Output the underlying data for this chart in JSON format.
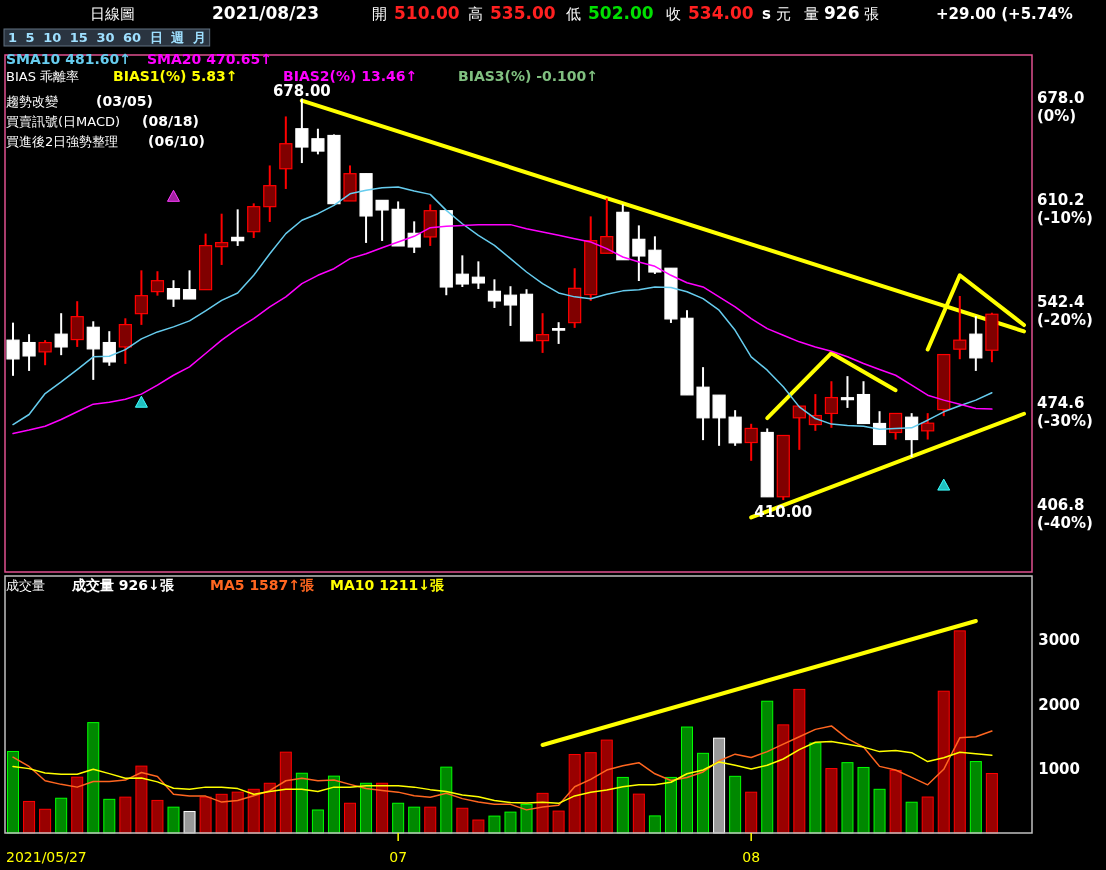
{
  "chart_data": [
    {
      "type": "candlestick",
      "legend": "top left",
      "grid": false,
      "tick_labels": "y",
      "categories": [
        null,
        null,
        null,
        null,
        null,
        null,
        null,
        null,
        null,
        null,
        null,
        null,
        null,
        null,
        null,
        null,
        null,
        null,
        null,
        null,
        null,
        null,
        null,
        null,
        null,
        null,
        null,
        null,
        null,
        null,
        null,
        null,
        null,
        null,
        null,
        null,
        null,
        null,
        null,
        null,
        null,
        null,
        null,
        null,
        null,
        null,
        null,
        null,
        null,
        null,
        null,
        null,
        null,
        null,
        null,
        null,
        null,
        null,
        null,
        null,
        null,
        null,
        null,
        null
      ],
      "ylim": [
        362,
        707
      ],
      "yticks": [
        {
          "value": 678.0,
          "label": "678.0"
        },
        {
          "value": 610.2,
          "label": "610.2"
        },
        {
          "value": 542.4,
          "label": "542.4"
        },
        {
          "value": 474.6,
          "label": "474.6"
        },
        {
          "value": 406.8,
          "label": "406.8"
        }
      ],
      "y2lim": [
        -44.84,
        6.05
      ],
      "y2ticks": [
        {
          "value": 0,
          "label": "(0%)"
        },
        {
          "value": -10,
          "label": "(-10%)"
        },
        {
          "value": -20,
          "label": "(-20%)"
        },
        {
          "value": -30,
          "label": "(-30%)"
        },
        {
          "value": -40,
          "label": "(-40%)"
        }
      ],
      "ohlc": [
        [
          516.7,
          528.4,
          492.9,
          504.2
        ],
        [
          515.1,
          520.7,
          496.2,
          506.2
        ],
        [
          508.9,
          516.7,
          500.0,
          515.1
        ],
        [
          520.7,
          534.7,
          506.7,
          512.2
        ],
        [
          517.1,
          542.7,
          512.2,
          532.4
        ],
        [
          525.3,
          529.3,
          490.2,
          510.9
        ],
        [
          515.1,
          522.7,
          499.6,
          502.2
        ],
        [
          512.2,
          531.3,
          500.9,
          527.1
        ],
        [
          534.4,
          563.3,
          526.9,
          546.4
        ],
        [
          549.1,
          562.7,
          546.4,
          556.4
        ],
        [
          551.1,
          556.7,
          538.9,
          544.2
        ],
        [
          550.4,
          563.3,
          544.2,
          544.2
        ],
        [
          550.4,
          587.8,
          550.4,
          579.8
        ],
        [
          579.1,
          601.1,
          566.9,
          581.8
        ],
        [
          585.3,
          604.0,
          579.6,
          583.1
        ],
        [
          589.1,
          608.0,
          584.9,
          605.8
        ],
        [
          605.8,
          633.3,
          595.6,
          619.8
        ],
        [
          631.1,
          666.0,
          617.6,
          647.8
        ],
        [
          657.8,
          678.0,
          634.9,
          645.6
        ],
        [
          651.1,
          657.8,
          640.7,
          642.9
        ],
        [
          653.3,
          654.0,
          607.8,
          607.8
        ],
        [
          609.6,
          633.3,
          609.6,
          627.8
        ],
        [
          627.8,
          627.8,
          581.6,
          599.6
        ],
        [
          610.0,
          610.0,
          582.9,
          603.6
        ],
        [
          604.0,
          609.3,
          579.6,
          579.6
        ],
        [
          588.0,
          596.0,
          574.9,
          578.9
        ],
        [
          585.6,
          607.3,
          579.6,
          603.1
        ],
        [
          603.1,
          603.1,
          546.7,
          552.2
        ],
        [
          560.7,
          573.3,
          552.2,
          554.2
        ],
        [
          558.7,
          569.3,
          550.9,
          554.9
        ],
        [
          549.3,
          557.3,
          538.2,
          542.9
        ],
        [
          546.7,
          552.7,
          526.2,
          540.2
        ],
        [
          547.3,
          550.7,
          516.2,
          516.2
        ],
        [
          516.4,
          534.7,
          508.2,
          520.4
        ],
        [
          524.4,
          528.7,
          514.2,
          524.4
        ],
        [
          528.4,
          564.7,
          524.9,
          551.3
        ],
        [
          547.1,
          599.3,
          542.9,
          583.1
        ],
        [
          574.7,
          611.3,
          574.7,
          585.8
        ],
        [
          602.0,
          607.3,
          570.4,
          570.4
        ],
        [
          584.0,
          593.3,
          556.2,
          572.9
        ],
        [
          576.7,
          586.0,
          560.9,
          562.2
        ],
        [
          564.7,
          564.7,
          528.2,
          530.9
        ],
        [
          531.3,
          536.7,
          480.2,
          480.2
        ],
        [
          485.3,
          498.7,
          450.0,
          464.9
        ],
        [
          480.0,
          480.0,
          446.2,
          464.9
        ],
        [
          465.3,
          470.0,
          446.2,
          448.2
        ],
        [
          448.4,
          460.9,
          436.2,
          457.8
        ],
        [
          455.1,
          457.8,
          412.2,
          412.2
        ],
        [
          412.2,
          453.1,
          410.0,
          453.1
        ],
        [
          464.9,
          472.7,
          443.5,
          472.7
        ],
        [
          460.4,
          480.7,
          456.2,
          466.4
        ],
        [
          467.8,
          489.3,
          458.2,
          478.4
        ],
        [
          478.3,
          492.7,
          471.5,
          477.0
        ],
        [
          480.4,
          489.3,
          461.1,
          461.1
        ],
        [
          461.1,
          469.3,
          447.1,
          447.1
        ],
        [
          455.1,
          467.8,
          450.4,
          467.8
        ],
        [
          465.3,
          468.0,
          438.7,
          450.4
        ],
        [
          456.2,
          468.0,
          450.4,
          461.3
        ],
        [
          470.4,
          507.1,
          466.0,
          507.1
        ],
        [
          510.7,
          546.2,
          504.0,
          516.7
        ],
        [
          520.7,
          532.7,
          496.2,
          504.9
        ],
        [
          510,
          535,
          502,
          534
        ],
        null,
        null
      ],
      "colors": [
        "#ffffff",
        "#ffffff",
        "#800000",
        "#ffffff",
        "#800000",
        "#ffffff",
        "#ffffff",
        "#800000",
        "#800000",
        "#800000",
        "#ffffff",
        "#ffffff",
        "#800000",
        "#800000",
        "#ffffff",
        "#800000",
        "#800000",
        "#800000",
        "#ffffff",
        "#ffffff",
        "#ffffff",
        "#800000",
        "#ffffff",
        "#ffffff",
        "#ffffff",
        "#ffffff",
        "#800000",
        "#ffffff",
        "#ffffff",
        "#ffffff",
        "#ffffff",
        "#ffffff",
        "#ffffff",
        "#800000",
        "#ffffff",
        "#800000",
        "#800000",
        "#800000",
        "#ffffff",
        "#ffffff",
        "#ffffff",
        "#ffffff",
        "#ffffff",
        "#ffffff",
        "#ffffff",
        "#ffffff",
        "#800000",
        "#ffffff",
        "#800000",
        "#800000",
        "#800000",
        "#800000",
        "#ffffff",
        "#ffffff",
        "#ffffff",
        "#800000",
        "#ffffff",
        "#800000",
        "#800000",
        "#800000",
        "#ffffff",
        "#800000",
        null,
        null
      ],
      "series": [
        {
          "type": "line",
          "name": "SMA10 481.60↑",
          "color": "#66ccee",
          "values": [
            460.4,
            467.1,
            481.1,
            488.9,
            497.1,
            505.6,
            506,
            510.4,
            517.6,
            522.2,
            525.6,
            529.6,
            536.2,
            543.3,
            548.2,
            560,
            574.4,
            587.8,
            596.7,
            601.1,
            606.7,
            614.4,
            616.7,
            618.4,
            618.9,
            616.2,
            614,
            603.3,
            594.4,
            586.7,
            580,
            571.1,
            562.2,
            554.4,
            548.2,
            545.6,
            544.4,
            547.3,
            549.6,
            550.4,
            552.2,
            551.8,
            549,
            544.4,
            536.7,
            523.3,
            505.6,
            496.7,
            485.6,
            472.2,
            464.4,
            460.7,
            459.8,
            459.3,
            457.3,
            457.8,
            458.2,
            463.3,
            468.9,
            472.9,
            476.7,
            481.6,
            null,
            null
          ]
        },
        {
          "type": "line",
          "name": "SMA20 470.65↑",
          "color": "#ff00ff",
          "values": [
            454.4,
            456.7,
            459.3,
            463.8,
            468.9,
            474,
            475.3,
            477.3,
            480.7,
            486.7,
            493.3,
            498.9,
            507.8,
            516.7,
            524.4,
            531.1,
            538.9,
            545.6,
            554.4,
            560,
            564.4,
            571.1,
            574.4,
            578.4,
            582.2,
            586,
            591.8,
            592.7,
            593.3,
            593.8,
            593.8,
            593.8,
            591.1,
            588.9,
            586.7,
            584.4,
            582.2,
            577.8,
            572.2,
            568.9,
            566,
            560,
            555,
            552.2,
            545.6,
            538.9,
            531.1,
            524.4,
            520,
            515.6,
            512.2,
            509.3,
            505.6,
            501.1,
            497.1,
            493.3,
            486.7,
            480,
            476.7,
            474,
            471.1,
            470.7,
            null,
            null
          ]
        },
        {
          "type": "line",
          "color": "#ffff00",
          "values": [
            null,
            null,
            null,
            null,
            null,
            null,
            null,
            null,
            null,
            null,
            null,
            null,
            null,
            null,
            null,
            null,
            null,
            null,
            676.5,
            null,
            null,
            null,
            null,
            null,
            null,
            null,
            null,
            null,
            null,
            null,
            null,
            null,
            null,
            null,
            null,
            null,
            null,
            null,
            null,
            null,
            null,
            null,
            null,
            null,
            null,
            null,
            null,
            null,
            null,
            null,
            null,
            null,
            null,
            null,
            null,
            null,
            null,
            null,
            null,
            null,
            null,
            null,
            null,
            522.6
          ]
        },
        {
          "type": "line",
          "color": "#ffff00",
          "values": [
            null,
            null,
            null,
            null,
            null,
            null,
            null,
            null,
            null,
            null,
            null,
            null,
            null,
            null,
            null,
            null,
            null,
            null,
            null,
            null,
            null,
            null,
            null,
            null,
            null,
            null,
            null,
            null,
            null,
            null,
            null,
            null,
            null,
            null,
            null,
            null,
            null,
            null,
            null,
            null,
            null,
            null,
            null,
            null,
            null,
            null,
            398.4,
            null,
            null,
            null,
            null,
            null,
            null,
            null,
            null,
            null,
            null,
            null,
            null,
            null,
            null,
            null,
            null,
            467.6
          ]
        },
        {
          "type": "line",
          "color": "#ffff00",
          "values": [
            null,
            null,
            null,
            null,
            null,
            null,
            null,
            null,
            null,
            null,
            null,
            null,
            null,
            null,
            null,
            null,
            null,
            null,
            null,
            null,
            null,
            null,
            null,
            null,
            null,
            null,
            null,
            null,
            null,
            null,
            null,
            null,
            null,
            null,
            null,
            null,
            null,
            null,
            null,
            null,
            null,
            null,
            null,
            null,
            null,
            null,
            null,
            464.7,
            null,
            null,
            null,
            508,
            null,
            null,
            null,
            483.3,
            null,
            null,
            null,
            null,
            null,
            null,
            null,
            null
          ]
        },
        {
          "type": "line",
          "color": "#ffff00",
          "values": [
            null,
            null,
            null,
            null,
            null,
            null,
            null,
            null,
            null,
            null,
            null,
            null,
            null,
            null,
            null,
            null,
            null,
            null,
            null,
            null,
            null,
            null,
            null,
            null,
            null,
            null,
            null,
            null,
            null,
            null,
            null,
            null,
            null,
            null,
            null,
            null,
            null,
            null,
            null,
            null,
            null,
            null,
            null,
            null,
            null,
            null,
            null,
            null,
            null,
            null,
            null,
            null,
            null,
            null,
            null,
            null,
            null,
            510.5,
            null,
            560,
            null,
            null,
            null,
            526.8
          ]
        },
        {
          "type": "scatter",
          "color": "#a020a0",
          "marker": "triangle",
          "values": [
            null,
            null,
            null,
            null,
            null,
            null,
            null,
            null,
            null,
            null,
            612.7,
            null,
            null,
            null,
            null,
            null,
            null,
            null,
            null,
            null,
            null,
            null,
            null,
            null,
            null,
            null,
            null,
            null,
            null,
            null,
            null,
            null,
            null,
            null,
            null,
            null,
            null,
            null,
            null,
            null,
            null,
            null,
            null,
            null,
            null,
            null,
            null,
            null,
            null,
            null,
            null,
            null,
            null,
            null,
            null,
            null,
            null,
            null,
            null,
            null,
            null,
            null,
            null,
            null
          ]
        },
        {
          "type": "scatter",
          "color": "#20c0c0",
          "marker": "triangle",
          "values": [
            null,
            null,
            null,
            null,
            null,
            null,
            null,
            null,
            475.3,
            null,
            null,
            null,
            null,
            null,
            null,
            null,
            null,
            null,
            null,
            null,
            null,
            null,
            null,
            null,
            null,
            null,
            null,
            null,
            null,
            null,
            null,
            null,
            null,
            null,
            null,
            null,
            null,
            null,
            null,
            null,
            null,
            null,
            null,
            null,
            null,
            null,
            null,
            null,
            null,
            null,
            null,
            null,
            null,
            null,
            null,
            null,
            null,
            null,
            420,
            null,
            null,
            null,
            null,
            null
          ]
        }
      ],
      "annotations": [
        "日線圖",
        "2021/08/23",
        "開",
        "510.00",
        "高",
        "535.00",
        "低",
        "502.00",
        "收",
        "534.00",
        "s",
        "元",
        "量",
        "926",
        "張",
        "+29.00 (+5.74%",
        "1 5 10 15 30 60 日 週 月",
        "BIAS 乖離率",
        "BIAS1(%) 5.83↑",
        "BIAS2(%) 13.46↑",
        "BIAS3(%) -0.100↑",
        "趨勢改變",
        "(03/05)",
        "買賣訊號(日MACD)",
        "(08/18)",
        "買進後2日強勢整理",
        "(06/10)",
        {
          "text": "678.00",
          "y": 678
        },
        {
          "text": "410.00",
          "y": 410
        }
      ]
    },
    {
      "type": "bar",
      "legend": "top left",
      "grid": false,
      "categories": [
        null,
        null,
        null,
        null,
        null,
        null,
        null,
        null,
        null,
        null,
        null,
        null,
        null,
        null,
        null,
        null,
        null,
        null,
        null,
        null,
        null,
        null,
        null,
        null,
        "07",
        null,
        null,
        null,
        null,
        null,
        null,
        null,
        null,
        null,
        null,
        null,
        null,
        null,
        null,
        null,
        null,
        null,
        null,
        null,
        null,
        null,
        "08",
        null,
        null,
        null,
        null,
        null,
        null,
        null,
        null,
        null,
        null,
        null,
        null,
        null,
        null,
        null,
        null,
        null
      ],
      "ylim": [
        0,
        4000
      ],
      "yticks": [
        1000,
        2000,
        3000
      ],
      "series": [
        {
          "type": "bar",
          "values": [
            1269,
            491,
            369,
            541,
            869,
            1718,
            524,
            558,
            1041,
            507,
            402,
            335,
            558,
            602,
            636,
            680,
            774,
            1258,
            930,
            358,
            885,
            463,
            774,
            774,
            463,
            402,
            402,
            1025,
            385,
            202,
            263,
            325,
            445,
            617,
            341,
            1222,
            1250,
            1446,
            865,
            605,
            266,
            865,
            1649,
            1240,
            1476,
            882,
            635,
            2051,
            1683,
            2235,
            1400,
            1003,
            1095,
            1020,
            680,
            974,
            479,
            560,
            2207,
            3146,
            1112,
            926,
            null,
            null
          ],
          "colors": [
            "#008800",
            "#990000",
            "#990000",
            "#008800",
            "#990000",
            "#008800",
            "#008800",
            "#990000",
            "#990000",
            "#990000",
            "#008800",
            "#999999",
            "#990000",
            "#990000",
            "#990000",
            "#990000",
            "#990000",
            "#990000",
            "#008800",
            "#008800",
            "#008800",
            "#990000",
            "#008800",
            "#990000",
            "#008800",
            "#008800",
            "#990000",
            "#008800",
            "#990000",
            "#990000",
            "#008800",
            "#008800",
            "#008800",
            "#990000",
            "#990000",
            "#990000",
            "#990000",
            "#990000",
            "#008800",
            "#990000",
            "#008800",
            "#008800",
            "#008800",
            "#008800",
            "#999999",
            "#008800",
            "#990000",
            "#008800",
            "#990000",
            "#990000",
            "#008800",
            "#990000",
            "#008800",
            "#008800",
            "#008800",
            "#990000",
            "#008800",
            "#990000",
            "#990000",
            "#990000",
            "#008800",
            "#990000",
            null,
            null
          ]
        },
        {
          "type": "line",
          "name": "MA5 1587↑張",
          "color": "#ff6620",
          "values": [
            1180,
            1036,
            813,
            757,
            714,
            802,
            802,
            824,
            941,
            880,
            602,
            574,
            574,
            481,
            507,
            580,
            658,
            813,
            852,
            813,
            824,
            757,
            691,
            663,
            636,
            580,
            558,
            619,
            535,
            481,
            446,
            446,
            360,
            404,
            432,
            720,
            835,
            980,
            1048,
            1095,
            922,
            818,
            865,
            950,
            1124,
            1227,
            1176,
            1267,
            1383,
            1498,
            1613,
            1666,
            1470,
            1337,
            1037,
            980,
            865,
            750,
            991,
            1481,
            1498,
            1587,
            null,
            null
          ]
        },
        {
          "type": "line",
          "name": "MA10 1211↓張",
          "color": "#ffff00",
          "values": [
            1036,
            1002,
            935,
            913,
            913,
            991,
            924,
            852,
            857,
            796,
            697,
            680,
            714,
            714,
            691,
            602,
            647,
            680,
            680,
            647,
            714,
            714,
            736,
            736,
            736,
            714,
            675,
            647,
            591,
            563,
            507,
            474,
            465,
            479,
            462,
            577,
            635,
            669,
            720,
            750,
            750,
            790,
            922,
            980,
            1106,
            1054,
            997,
            1054,
            1152,
            1297,
            1412,
            1423,
            1383,
            1337,
            1267,
            1285,
            1250,
            1112,
            1170,
            1257,
            1233,
            1211,
            null,
            null
          ]
        },
        {
          "type": "line",
          "color": "#ffff00",
          "values": [
            null,
            null,
            null,
            null,
            null,
            null,
            null,
            null,
            null,
            null,
            null,
            null,
            null,
            null,
            null,
            null,
            null,
            null,
            null,
            null,
            null,
            null,
            null,
            null,
            null,
            null,
            null,
            null,
            null,
            null,
            null,
            null,
            null,
            1370,
            null,
            null,
            null,
            null,
            null,
            null,
            null,
            null,
            null,
            null,
            null,
            null,
            null,
            null,
            null,
            null,
            null,
            null,
            null,
            null,
            null,
            null,
            null,
            null,
            null,
            null,
            3300,
            null,
            null,
            null
          ]
        }
      ],
      "annotations": [
        "成交量",
        "成交量 926↓張",
        "2021/05/27"
      ]
    }
  ]
}
